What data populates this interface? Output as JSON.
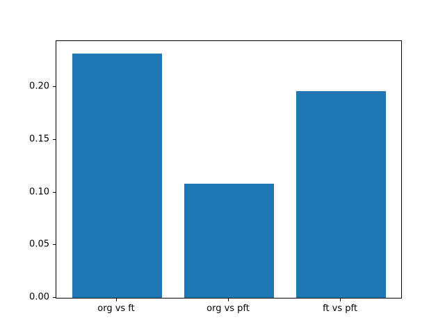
{
  "chart_data": {
    "type": "bar",
    "title": "",
    "xlabel": "",
    "ylabel": "",
    "categories": [
      "org vs ft",
      "org vs pft",
      "ft vs pft"
    ],
    "values": [
      0.232,
      0.108,
      0.196
    ],
    "ylim": [
      0,
      0.2436
    ],
    "yticks": [
      0,
      0.05,
      0.1,
      0.15,
      0.2
    ],
    "ytick_labels": [
      "0.00",
      "0.05",
      "0.10",
      "0.15",
      "0.20"
    ],
    "bar_color": "#1f77b4",
    "grid": false,
    "legend": false,
    "bar_width_fraction": 0.8,
    "x_margin": 0.54
  }
}
